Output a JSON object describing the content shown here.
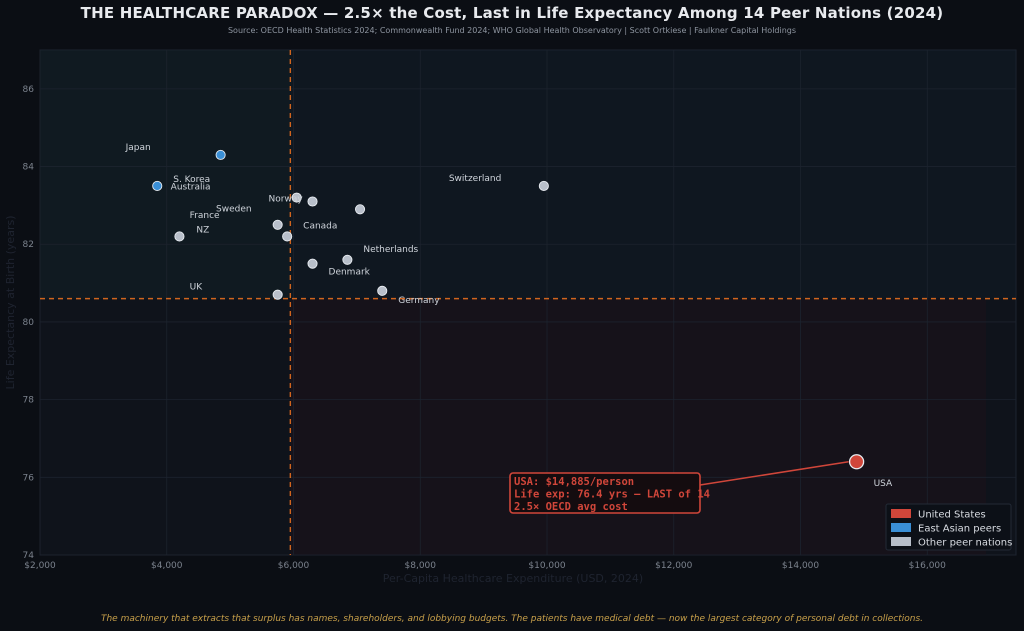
{
  "header": {
    "title": "THE HEALTHCARE PARADOX — 2.5× the Cost, Last in Life Expectancy Among 14 Peer Nations (2024)",
    "subtitle": "Source: OECD Health Statistics 2024; Commonwealth Fund 2024; WHO Global Health Observatory  |  Scott Ortkiese  |  Faulkner Capital Holdings"
  },
  "footer": {
    "text": "The machinery that extracts that surplus has names, shareholders, and lobbying budgets. The patients have medical debt — now the largest category of personal debt in collections."
  },
  "colors": {
    "usa": "#d0463a",
    "east_asian": "#3a8fd6",
    "other": "#b8bfca",
    "reference_line": "#d0651e"
  },
  "chart_data": {
    "type": "scatter",
    "title": "THE HEALTHCARE PARADOX — 2.5× the Cost, Last in Life Expectancy Among 14 Peer Nations (2024)",
    "xlabel": "Per-Capita Healthcare Expenditure (USD, 2024)",
    "ylabel": "Life Expectancy at Birth (years)",
    "xlim": [
      2000,
      17400
    ],
    "ylim": [
      74,
      87
    ],
    "x_ticks": [
      2000,
      4000,
      6000,
      8000,
      10000,
      12000,
      14000,
      16000
    ],
    "x_tick_labels": [
      "$2,000",
      "$4,000",
      "$6,000",
      "$8,000",
      "$10,000",
      "$12,000",
      "$14,000",
      "$16,000"
    ],
    "y_ticks": [
      74,
      76,
      78,
      80,
      82,
      84,
      86
    ],
    "y_tick_labels": [
      "74",
      "76",
      "78",
      "80",
      "82",
      "84",
      "86"
    ],
    "grid": true,
    "reference_lines": {
      "x": 5950,
      "y": 80.6
    },
    "points": [
      {
        "name": "Japan",
        "x": 4850,
        "y": 84.3,
        "group": "east_asian"
      },
      {
        "name": "S. Korea",
        "x": 3850,
        "y": 83.5,
        "group": "east_asian"
      },
      {
        "name": "Australia",
        "x": 6050,
        "y": 83.2,
        "group": "other"
      },
      {
        "name": "Switzerland",
        "x": 9950,
        "y": 83.5,
        "group": "other"
      },
      {
        "name": "Norway",
        "x": 6300,
        "y": 83.1,
        "group": "other"
      },
      {
        "name": "Sweden",
        "x": 7050,
        "y": 82.9,
        "group": "other"
      },
      {
        "name": "France",
        "x": 5750,
        "y": 82.5,
        "group": "other"
      },
      {
        "name": "NZ",
        "x": 4200,
        "y": 82.2,
        "group": "other"
      },
      {
        "name": "Canada",
        "x": 5900,
        "y": 82.2,
        "group": "other"
      },
      {
        "name": "Netherlands",
        "x": 6850,
        "y": 81.6,
        "group": "other"
      },
      {
        "name": "Denmark",
        "x": 6300,
        "y": 81.5,
        "group": "other"
      },
      {
        "name": "Germany",
        "x": 7400,
        "y": 80.8,
        "group": "other"
      },
      {
        "name": "UK",
        "x": 5750,
        "y": 80.7,
        "group": "other"
      },
      {
        "name": "USA",
        "x": 14885,
        "y": 76.4,
        "group": "usa"
      }
    ],
    "annotation": {
      "lines": [
        "USA: $14,885/person",
        "Life exp: 76.4 yrs — LAST of 14",
        "2.5× OECD avg cost"
      ]
    },
    "legend": {
      "placement": "bottom-right",
      "entries": [
        {
          "label": "United States",
          "group": "usa"
        },
        {
          "label": "East Asian peers",
          "group": "east_asian"
        },
        {
          "label": "Other peer nations",
          "group": "other"
        }
      ]
    }
  }
}
